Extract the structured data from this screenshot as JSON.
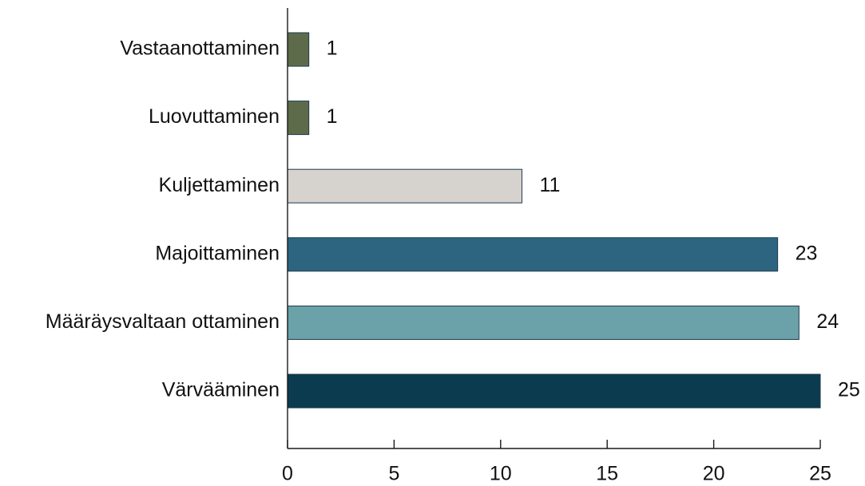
{
  "chart_data": {
    "type": "bar",
    "orientation": "horizontal",
    "title": "",
    "xlabel": "",
    "ylabel": "",
    "categories": [
      "Vastaanottaminen",
      "Luovuttaminen",
      "Kuljettaminen",
      "Majoittaminen",
      "Määräysvaltaan ottaminen",
      "Värvääminen"
    ],
    "values": [
      1,
      1,
      11,
      23,
      24,
      25
    ],
    "value_labels": [
      "1",
      "1",
      "11",
      "23",
      "24",
      "25"
    ],
    "bar_colors": [
      "#5e6b4a",
      "#5e6b4a",
      "#d6d3cf",
      "#2d6580",
      "#6ba1a8",
      "#0b3b4e"
    ],
    "xlim": [
      0,
      25
    ],
    "xticks": [
      0,
      5,
      10,
      15,
      20,
      25
    ],
    "xtick_labels": [
      "0",
      "5",
      "10",
      "15",
      "20",
      "25"
    ],
    "grid": false,
    "legend": "none"
  }
}
